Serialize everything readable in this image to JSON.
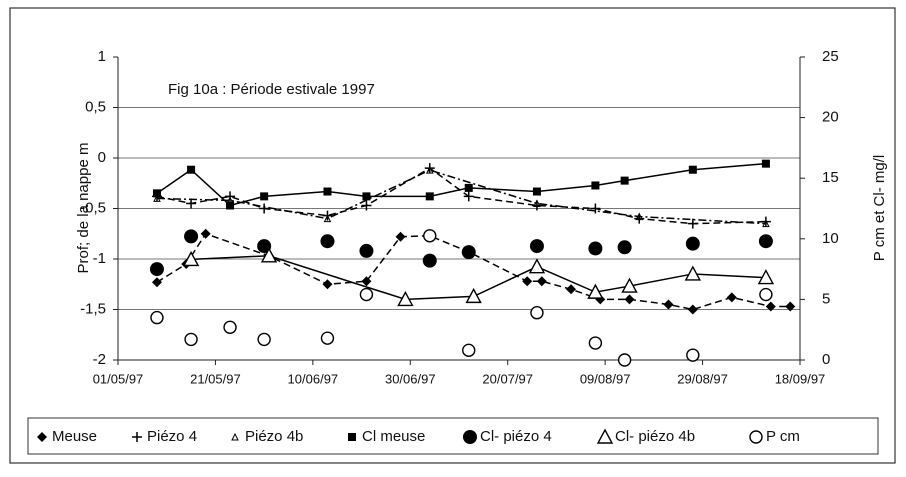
{
  "chart_data": {
    "type": "line",
    "title": "Fig 10a : Période estivale 1997",
    "ylabel": "Prof; de la nappe m",
    "y2label": "P cm et Cl- mg/l",
    "xlim": [
      "1997-05-01",
      "1997-09-18"
    ],
    "xticks": [
      {
        "value": "1997-05-01",
        "label": "01/05/97"
      },
      {
        "value": "1997-05-21",
        "label": "21/05/97"
      },
      {
        "value": "1997-06-10",
        "label": "10/06/97"
      },
      {
        "value": "1997-06-30",
        "label": "30/06/97"
      },
      {
        "value": "1997-07-20",
        "label": "20/07/97"
      },
      {
        "value": "1997-08-09",
        "label": "09/08/97"
      },
      {
        "value": "1997-08-29",
        "label": "29/08/97"
      },
      {
        "value": "1997-09-18",
        "label": "18/09/97"
      }
    ],
    "ylim": [
      -2,
      1
    ],
    "yticks": [
      1,
      {
        "value": 0.5,
        "label": "0,5"
      },
      0,
      {
        "value": -0.5,
        "label": "-0,5"
      },
      -1,
      {
        "value": -1.5,
        "label": "-1,5"
      },
      -2
    ],
    "y2lim": [
      0,
      25
    ],
    "y2ticks": [
      0,
      5,
      10,
      15,
      20,
      25
    ],
    "grid": true,
    "legend": "bottom",
    "series": [
      {
        "name": "Meuse",
        "color": "#000000",
        "marker": "diamond",
        "line": "dashed",
        "x": [
          "1997-05-09",
          "1997-05-15",
          "1997-05-19",
          "1997-06-01",
          "1997-06-13",
          "1997-06-21",
          "1997-06-28",
          "1997-07-04",
          "1997-07-12",
          "1997-07-24",
          "1997-07-27",
          "1997-08-02",
          "1997-08-08",
          "1997-08-14",
          "1997-08-22",
          "1997-08-27",
          "1997-09-04",
          "1997-09-12",
          "1997-09-16"
        ],
        "values": [
          -1.23,
          -1.05,
          -0.75,
          -0.97,
          -1.25,
          -1.22,
          -0.78,
          -0.77,
          -0.93,
          -1.22,
          -1.22,
          -1.3,
          -1.4,
          -1.4,
          -1.45,
          -1.5,
          -1.38,
          -1.47,
          -1.47
        ]
      },
      {
        "name": "Piézo 4",
        "color": "#000000",
        "marker": "plus",
        "line": "dashed",
        "x": [
          "1997-05-09",
          "1997-05-16",
          "1997-05-24",
          "1997-05-31",
          "1997-06-13",
          "1997-06-21",
          "1997-07-04",
          "1997-07-12",
          "1997-07-26",
          "1997-08-07",
          "1997-08-16",
          "1997-08-27",
          "1997-09-11"
        ],
        "values": [
          -0.38,
          -0.45,
          -0.38,
          -0.5,
          -0.57,
          -0.47,
          -0.1,
          -0.38,
          -0.47,
          -0.5,
          -0.6,
          -0.65,
          -0.63
        ]
      },
      {
        "name": "Piézo 4b",
        "color": "#000000",
        "marker": "smalltri",
        "line": "dashdot",
        "x": [
          "1997-05-09",
          "1997-05-24",
          "1997-06-13",
          "1997-07-04",
          "1997-07-26",
          "1997-08-16",
          "1997-09-11"
        ],
        "values": [
          -0.4,
          -0.42,
          -0.6,
          -0.12,
          -0.45,
          -0.58,
          -0.65
        ]
      },
      {
        "name": "Cl meuse",
        "color": "#000000",
        "marker": "square",
        "line": "solid",
        "axis": "y2",
        "x": [
          "1997-05-09",
          "1997-05-16",
          "1997-05-24",
          "1997-05-31",
          "1997-06-13",
          "1997-06-21",
          "1997-07-04",
          "1997-07-12",
          "1997-07-26",
          "1997-08-07",
          "1997-08-13",
          "1997-08-27",
          "1997-09-11"
        ],
        "values": [
          13.75,
          15.7,
          12.75,
          13.5,
          13.9,
          13.5,
          13.5,
          14.2,
          13.9,
          14.4,
          14.8,
          15.7,
          16.2
        ]
      },
      {
        "name": "Cl- piézo 4",
        "color": "#000000",
        "marker": "dot",
        "line": "none",
        "axis": "y2",
        "x": [
          "1997-05-09",
          "1997-05-16",
          "1997-05-31",
          "1997-06-13",
          "1997-06-21",
          "1997-07-04",
          "1997-07-12",
          "1997-07-26",
          "1997-08-07",
          "1997-08-13",
          "1997-08-27",
          "1997-09-11"
        ],
        "values": [
          7.5,
          10.2,
          9.4,
          9.8,
          9.0,
          8.2,
          8.9,
          9.4,
          9.2,
          9.3,
          9.6,
          9.8
        ]
      },
      {
        "name": "Cl- piézo 4b",
        "color": "#000000",
        "marker": "triangle",
        "line": "solid",
        "axis": "y2",
        "x": [
          "1997-05-16",
          "1997-06-01",
          "1997-06-29",
          "1997-07-13",
          "1997-07-26",
          "1997-08-07",
          "1997-08-14",
          "1997-08-27",
          "1997-09-11"
        ],
        "values": [
          8.3,
          8.6,
          5.0,
          5.25,
          7.7,
          5.6,
          6.1,
          7.1,
          6.8
        ]
      },
      {
        "name": "P cm",
        "color": "#000000",
        "marker": "circle",
        "line": "none",
        "axis": "y2",
        "x": [
          "1997-05-09",
          "1997-05-16",
          "1997-05-24",
          "1997-05-31",
          "1997-06-13",
          "1997-06-21",
          "1997-07-04",
          "1997-07-12",
          "1997-07-26",
          "1997-08-07",
          "1997-08-13",
          "1997-08-27",
          "1997-09-11"
        ],
        "values": [
          3.5,
          1.7,
          2.7,
          1.7,
          1.8,
          5.4,
          10.25,
          0.8,
          3.9,
          1.4,
          0,
          0.4,
          5.4
        ]
      }
    ]
  }
}
